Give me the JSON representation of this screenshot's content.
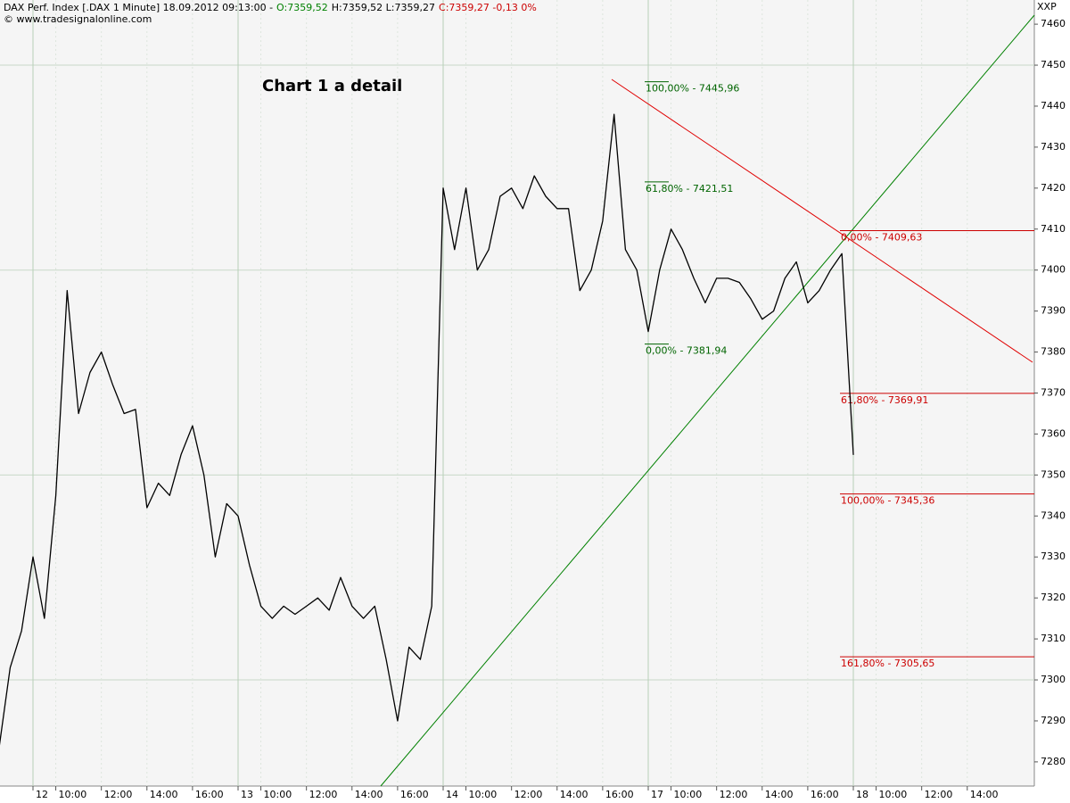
{
  "header": {
    "instrument": "DAX Perf. Index [.DAX  1 Minute] 18.09.2012 09:13:00 -",
    "open": "O:7359,52",
    "high_low": "H:7359,52 L:7359,27",
    "close": "C:7359,27 -0,13 0%",
    "source": "© www.tradesignalonline.com",
    "corner": "XXP"
  },
  "chart_data": {
    "type": "line",
    "title": "Chart 1 a detail",
    "categories": [
      null,
      null,
      null,
      "12",
      null,
      "10:00",
      null,
      null,
      null,
      "12:00",
      null,
      null,
      null,
      "14:00",
      null,
      null,
      null,
      "16:00",
      null,
      null,
      null,
      "13",
      null,
      "10:00",
      null,
      null,
      null,
      "12:00",
      null,
      null,
      null,
      "14:00",
      null,
      null,
      null,
      "16:00",
      null,
      null,
      null,
      "14",
      null,
      "10:00",
      null,
      null,
      null,
      "12:00",
      null,
      null,
      null,
      "14:00",
      null,
      null,
      null,
      "16:00",
      null,
      null,
      null,
      "17",
      null,
      "10:00",
      null,
      null,
      null,
      "12:00",
      null,
      null,
      null,
      "14:00",
      null,
      null,
      null,
      "16:00",
      null,
      null,
      null,
      "18",
      null,
      "10:00",
      null,
      null,
      null,
      "12:00",
      null,
      null,
      null,
      "14:00",
      null,
      null,
      null,
      null,
      null
    ],
    "series": [
      {
        "name": "DAX Perf. Index",
        "color": "#000000",
        "values": [
          7283,
          7303,
          7312,
          7330,
          7315,
          7345,
          7395,
          7365,
          7375,
          7380,
          7372,
          7365,
          7366,
          7342,
          7348,
          7345,
          7355,
          7362,
          7350,
          7330,
          7343,
          7340,
          7328,
          7318,
          7315,
          7318,
          7316,
          7318,
          7320,
          7317,
          7325,
          7318,
          7315,
          7318,
          7305,
          7290,
          7308,
          7305,
          7318,
          7420,
          7405,
          7420,
          7400,
          7405,
          7418,
          7420,
          7415,
          7423,
          7418,
          7415,
          7415,
          7395,
          7400,
          7412,
          7438,
          7405,
          7400,
          7385,
          7400,
          7410,
          7405,
          7398,
          7392,
          7398,
          7398,
          7397,
          7393,
          7388,
          7390,
          7398,
          7402,
          7392,
          7395,
          7400,
          7404,
          7355,
          null,
          null,
          null,
          null,
          null,
          null,
          null,
          null,
          null,
          null,
          null,
          null,
          null,
          null,
          null
        ]
      }
    ],
    "ylim": [
      7274.1,
      7465.9
    ],
    "yticks": [
      7280,
      7290,
      7300,
      7310,
      7320,
      7330,
      7340,
      7350,
      7360,
      7370,
      7380,
      7390,
      7400,
      7410,
      7420,
      7430,
      7440,
      7450,
      7460
    ],
    "ygrid": [
      7300,
      7350,
      7400,
      7450
    ],
    "fib_levels": [
      {
        "label": "100,00% - 7445,96",
        "value": 7445.96,
        "color": "#006400",
        "style": "short"
      },
      {
        "label": "61,80% - 7421,51",
        "value": 7421.51,
        "color": "#006400",
        "style": "short"
      },
      {
        "label": "0,00% - 7381,94",
        "value": 7381.94,
        "color": "#006400",
        "style": "short"
      },
      {
        "label": "0,00% - 7409,63",
        "value": 7409.63,
        "color": "#cc0000",
        "style": "long"
      },
      {
        "label": "61,80% - 7369,91",
        "value": 7369.91,
        "color": "#cc0000",
        "style": "long"
      },
      {
        "label": "100,00% - 7345,36",
        "value": 7345.36,
        "color": "#cc0000",
        "style": "long"
      },
      {
        "label": "161,80% - 7305,65",
        "value": 7305.65,
        "color": "#cc0000",
        "style": "long"
      }
    ]
  }
}
